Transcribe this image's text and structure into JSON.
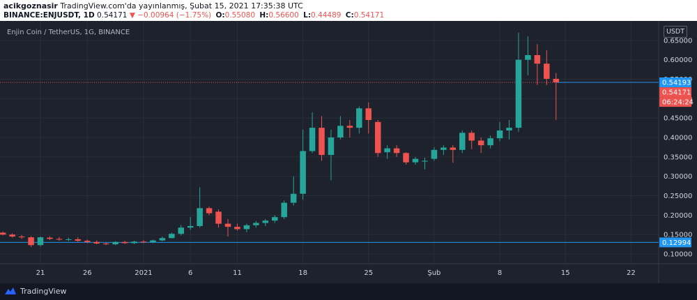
{
  "header": {
    "author": "acikgoznasir",
    "published": "TradingView.com'da yayınlanmış, Şubat 15, 2021 17:35:38 UTC",
    "symbol_line": "BINANCE:ENJUSDT, 1D",
    "last_price": "0.54171",
    "change_arrow": "▼",
    "change": "−0.00964 (−1.75%)",
    "o_label": "O:",
    "o_value": "0.55080",
    "h_label": "H:",
    "h_value": "0.56600",
    "l_label": "L:",
    "l_value": "0.44489",
    "c_label": "C:",
    "c_value": "0.54171"
  },
  "chart_title": "Enjin Coin / TetherUS, 1G, BINANCE",
  "currency": "USDT",
  "footer": {
    "brand": "TradingView"
  },
  "colors": {
    "up": "#26a69a",
    "down": "#ef5350",
    "background": "#1e222d",
    "blue_line": "#2196f3",
    "red_dotted": "#ef5350",
    "grid": "#2a2e39"
  },
  "chart_data": {
    "type": "candlestick",
    "title": "Enjin Coin / TetherUS, 1G, BINANCE",
    "y_axis": {
      "ticks": [
        "0.10000",
        "0.15000",
        "0.20000",
        "0.25000",
        "0.30000",
        "0.35000",
        "0.40000",
        "0.45000",
        "0.50000",
        "0.55000",
        "0.60000",
        "0.65000"
      ],
      "range": [
        0.075,
        0.7
      ]
    },
    "x_axis": {
      "ticks": [
        {
          "label": "21",
          "day": 21
        },
        {
          "label": "26",
          "day": 26
        },
        {
          "label": "2021",
          "day": 32
        },
        {
          "label": "6",
          "day": 37
        },
        {
          "label": "11",
          "day": 42
        },
        {
          "label": "18",
          "day": 49
        },
        {
          "label": "25",
          "day": 56
        },
        {
          "label": "Şub",
          "day": 63
        },
        {
          "label": "8",
          "day": 70
        },
        {
          "label": "15",
          "day": 77
        },
        {
          "label": "22",
          "day": 84
        }
      ]
    },
    "candles": [
      {
        "d": 14,
        "o": 0.152,
        "h": 0.158,
        "l": 0.149,
        "c": 0.155
      },
      {
        "d": 15,
        "o": 0.153,
        "h": 0.16,
        "l": 0.148,
        "c": 0.158
      },
      {
        "d": 16,
        "o": 0.158,
        "h": 0.162,
        "l": 0.152,
        "c": 0.154
      },
      {
        "d": 17,
        "o": 0.155,
        "h": 0.158,
        "l": 0.148,
        "c": 0.15
      },
      {
        "d": 18,
        "o": 0.15,
        "h": 0.153,
        "l": 0.142,
        "c": 0.145
      },
      {
        "d": 19,
        "o": 0.145,
        "h": 0.149,
        "l": 0.139,
        "c": 0.143
      },
      {
        "d": 20,
        "o": 0.143,
        "h": 0.146,
        "l": 0.118,
        "c": 0.123
      },
      {
        "d": 21,
        "o": 0.123,
        "h": 0.145,
        "l": 0.12,
        "c": 0.143
      },
      {
        "d": 22,
        "o": 0.142,
        "h": 0.146,
        "l": 0.136,
        "c": 0.139
      },
      {
        "d": 23,
        "o": 0.139,
        "h": 0.144,
        "l": 0.134,
        "c": 0.137
      },
      {
        "d": 24,
        "o": 0.137,
        "h": 0.142,
        "l": 0.133,
        "c": 0.138
      },
      {
        "d": 25,
        "o": 0.138,
        "h": 0.143,
        "l": 0.131,
        "c": 0.134
      },
      {
        "d": 26,
        "o": 0.134,
        "h": 0.137,
        "l": 0.128,
        "c": 0.131
      },
      {
        "d": 27,
        "o": 0.131,
        "h": 0.135,
        "l": 0.125,
        "c": 0.127
      },
      {
        "d": 28,
        "o": 0.127,
        "h": 0.13,
        "l": 0.123,
        "c": 0.125
      },
      {
        "d": 29,
        "o": 0.125,
        "h": 0.133,
        "l": 0.123,
        "c": 0.131
      },
      {
        "d": 30,
        "o": 0.131,
        "h": 0.134,
        "l": 0.126,
        "c": 0.128
      },
      {
        "d": 31,
        "o": 0.128,
        "h": 0.134,
        "l": 0.126,
        "c": 0.132
      },
      {
        "d": 32,
        "o": 0.132,
        "h": 0.136,
        "l": 0.128,
        "c": 0.13
      },
      {
        "d": 33,
        "o": 0.13,
        "h": 0.137,
        "l": 0.128,
        "c": 0.135
      },
      {
        "d": 34,
        "o": 0.135,
        "h": 0.145,
        "l": 0.133,
        "c": 0.141
      },
      {
        "d": 35,
        "o": 0.141,
        "h": 0.155,
        "l": 0.14,
        "c": 0.152
      },
      {
        "d": 36,
        "o": 0.152,
        "h": 0.175,
        "l": 0.148,
        "c": 0.168
      },
      {
        "d": 37,
        "o": 0.168,
        "h": 0.195,
        "l": 0.162,
        "c": 0.172
      },
      {
        "d": 38,
        "o": 0.172,
        "h": 0.272,
        "l": 0.168,
        "c": 0.218
      },
      {
        "d": 39,
        "o": 0.218,
        "h": 0.222,
        "l": 0.2,
        "c": 0.205
      },
      {
        "d": 40,
        "o": 0.209,
        "h": 0.215,
        "l": 0.168,
        "c": 0.178
      },
      {
        "d": 41,
        "o": 0.178,
        "h": 0.19,
        "l": 0.145,
        "c": 0.17
      },
      {
        "d": 42,
        "o": 0.17,
        "h": 0.178,
        "l": 0.16,
        "c": 0.164
      },
      {
        "d": 43,
        "o": 0.164,
        "h": 0.178,
        "l": 0.156,
        "c": 0.174
      },
      {
        "d": 44,
        "o": 0.174,
        "h": 0.185,
        "l": 0.168,
        "c": 0.18
      },
      {
        "d": 45,
        "o": 0.18,
        "h": 0.19,
        "l": 0.172,
        "c": 0.186
      },
      {
        "d": 46,
        "o": 0.186,
        "h": 0.2,
        "l": 0.18,
        "c": 0.195
      },
      {
        "d": 47,
        "o": 0.195,
        "h": 0.238,
        "l": 0.19,
        "c": 0.232
      },
      {
        "d": 48,
        "o": 0.232,
        "h": 0.3,
        "l": 0.225,
        "c": 0.255
      },
      {
        "d": 49,
        "o": 0.255,
        "h": 0.42,
        "l": 0.24,
        "c": 0.365
      },
      {
        "d": 50,
        "o": 0.365,
        "h": 0.465,
        "l": 0.36,
        "c": 0.425
      },
      {
        "d": 51,
        "o": 0.425,
        "h": 0.455,
        "l": 0.34,
        "c": 0.355
      },
      {
        "d": 52,
        "o": 0.355,
        "h": 0.42,
        "l": 0.29,
        "c": 0.4
      },
      {
        "d": 53,
        "o": 0.4,
        "h": 0.455,
        "l": 0.395,
        "c": 0.43
      },
      {
        "d": 54,
        "o": 0.43,
        "h": 0.445,
        "l": 0.4,
        "c": 0.425
      },
      {
        "d": 55,
        "o": 0.425,
        "h": 0.48,
        "l": 0.41,
        "c": 0.475
      },
      {
        "d": 56,
        "o": 0.475,
        "h": 0.49,
        "l": 0.41,
        "c": 0.445
      },
      {
        "d": 57,
        "o": 0.44,
        "h": 0.445,
        "l": 0.35,
        "c": 0.36
      },
      {
        "d": 58,
        "o": 0.362,
        "h": 0.38,
        "l": 0.345,
        "c": 0.372
      },
      {
        "d": 59,
        "o": 0.372,
        "h": 0.38,
        "l": 0.35,
        "c": 0.36
      },
      {
        "d": 60,
        "o": 0.36,
        "h": 0.362,
        "l": 0.33,
        "c": 0.336
      },
      {
        "d": 61,
        "o": 0.336,
        "h": 0.35,
        "l": 0.33,
        "c": 0.345
      },
      {
        "d": 62,
        "o": 0.338,
        "h": 0.348,
        "l": 0.318,
        "c": 0.34
      },
      {
        "d": 63,
        "o": 0.345,
        "h": 0.375,
        "l": 0.34,
        "c": 0.368
      },
      {
        "d": 64,
        "o": 0.368,
        "h": 0.38,
        "l": 0.355,
        "c": 0.374
      },
      {
        "d": 65,
        "o": 0.374,
        "h": 0.38,
        "l": 0.335,
        "c": 0.368
      },
      {
        "d": 66,
        "o": 0.368,
        "h": 0.418,
        "l": 0.36,
        "c": 0.412
      },
      {
        "d": 67,
        "o": 0.412,
        "h": 0.418,
        "l": 0.37,
        "c": 0.392
      },
      {
        "d": 68,
        "o": 0.392,
        "h": 0.4,
        "l": 0.36,
        "c": 0.38
      },
      {
        "d": 69,
        "o": 0.38,
        "h": 0.405,
        "l": 0.372,
        "c": 0.398
      },
      {
        "d": 70,
        "o": 0.398,
        "h": 0.44,
        "l": 0.39,
        "c": 0.418
      },
      {
        "d": 71,
        "o": 0.418,
        "h": 0.445,
        "l": 0.395,
        "c": 0.425
      },
      {
        "d": 72,
        "o": 0.425,
        "h": 0.67,
        "l": 0.415,
        "c": 0.6
      },
      {
        "d": 73,
        "o": 0.6,
        "h": 0.66,
        "l": 0.56,
        "c": 0.612
      },
      {
        "d": 74,
        "o": 0.612,
        "h": 0.64,
        "l": 0.535,
        "c": 0.59
      },
      {
        "d": 75,
        "o": 0.59,
        "h": 0.625,
        "l": 0.535,
        "c": 0.551
      },
      {
        "d": 76,
        "o": 0.551,
        "h": 0.566,
        "l": 0.445,
        "c": 0.542
      }
    ],
    "horizontal_lines": [
      {
        "price": 0.12994,
        "label": "0.12994",
        "style": "solid",
        "color": "#2196f3"
      },
      {
        "price": 0.54193,
        "label": "0.54193",
        "style": "solid-right",
        "color": "#2196f3"
      },
      {
        "price": 0.54171,
        "label": "0.54171",
        "style": "dotted",
        "color": "#ef5350"
      }
    ],
    "price_labels": [
      {
        "text": "0.54193",
        "bg": "#2196f3"
      },
      {
        "text": "0.54171",
        "bg": "#ef5350"
      },
      {
        "text": "06:24:24",
        "bg": "#ef5350"
      },
      {
        "text": "0.12994",
        "bg": "#2196f3"
      }
    ]
  }
}
